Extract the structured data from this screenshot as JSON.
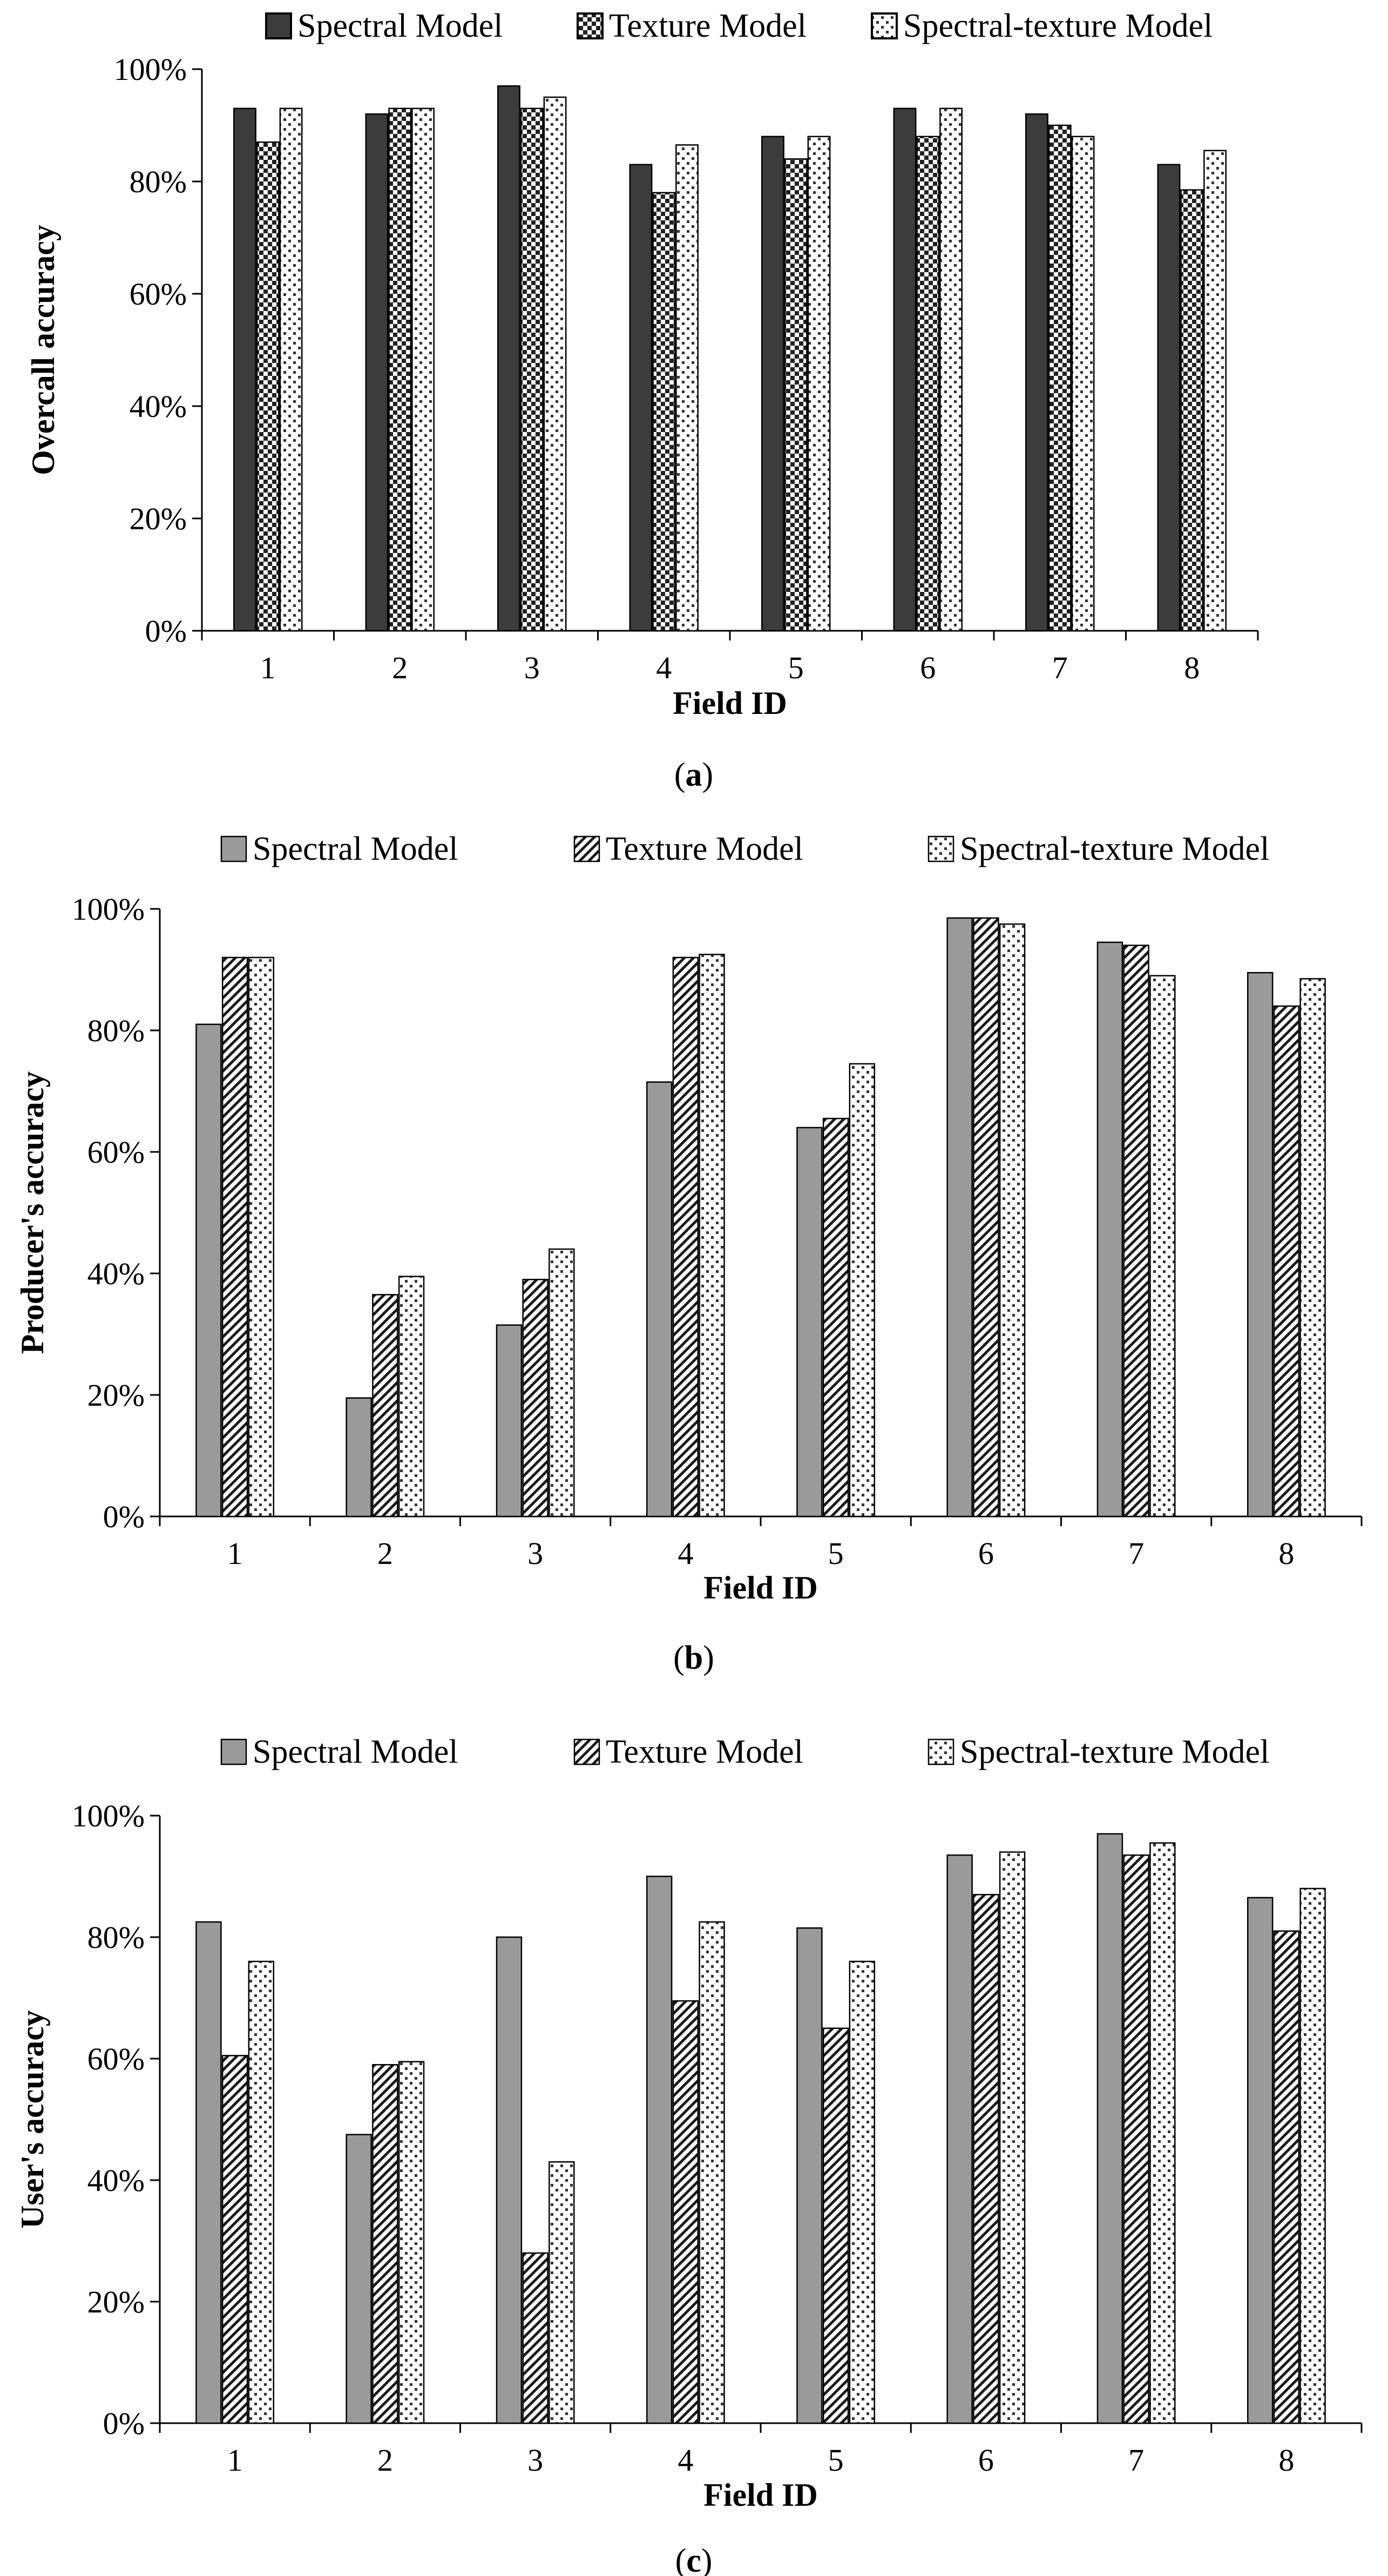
{
  "chart_data": [
    {
      "panel": "(a)",
      "panel_letter": "a",
      "type": "bar",
      "title": "",
      "xlabel": "Field ID",
      "ylabel": "Overcall accuracy",
      "ylim": [
        0,
        100
      ],
      "y_ticks": [
        "0%",
        "20%",
        "40%",
        "60%",
        "80%",
        "100%"
      ],
      "categories": [
        "1",
        "2",
        "3",
        "4",
        "5",
        "6",
        "7",
        "8"
      ],
      "legend_style": "boxed",
      "series": [
        {
          "name": "Spectral Model",
          "pattern": "solid-dark",
          "values": [
            93,
            92,
            97,
            83,
            88,
            93,
            92,
            83
          ]
        },
        {
          "name": "Texture Model",
          "pattern": "checker",
          "values": [
            87,
            93,
            93,
            78,
            84,
            88,
            90,
            78.5
          ]
        },
        {
          "name": "Spectral-texture Model",
          "pattern": "dots",
          "values": [
            93,
            93,
            95,
            86.5,
            88,
            93,
            88,
            85.5
          ]
        }
      ]
    },
    {
      "panel": "(b)",
      "panel_letter": "b",
      "type": "bar",
      "title": "",
      "xlabel": "Field ID",
      "ylabel": "Producer's  accuracy",
      "ylim": [
        0,
        100
      ],
      "y_ticks": [
        "0%",
        "20%",
        "40%",
        "60%",
        "80%",
        "100%"
      ],
      "categories": [
        "1",
        "2",
        "3",
        "4",
        "5",
        "6",
        "7",
        "8"
      ],
      "legend_style": "swatch",
      "series": [
        {
          "name": "Spectral Model",
          "pattern": "solid-grey",
          "values": [
            81,
            19.5,
            31.5,
            71.5,
            64,
            98.5,
            94.5,
            89.5
          ]
        },
        {
          "name": "Texture Model",
          "pattern": "diagonal",
          "values": [
            92,
            36.5,
            39,
            92,
            65.5,
            98.5,
            94,
            84
          ]
        },
        {
          "name": "Spectral-texture Model",
          "pattern": "dots",
          "values": [
            92,
            39.5,
            44,
            92.5,
            74.5,
            97.5,
            89,
            88.5
          ]
        }
      ]
    },
    {
      "panel": "(c)",
      "panel_letter": "c",
      "type": "bar",
      "title": "",
      "xlabel": "Field ID",
      "ylabel": "User's accuracy",
      "ylim": [
        0,
        100
      ],
      "y_ticks": [
        "0%",
        "20%",
        "40%",
        "60%",
        "80%",
        "100%"
      ],
      "categories": [
        "1",
        "2",
        "3",
        "4",
        "5",
        "6",
        "7",
        "8"
      ],
      "legend_style": "swatch",
      "series": [
        {
          "name": "Spectral Model",
          "pattern": "solid-grey",
          "values": [
            82.5,
            47.5,
            80,
            90,
            81.5,
            93.5,
            97,
            86.5
          ]
        },
        {
          "name": "Texture Model",
          "pattern": "diagonal",
          "values": [
            60.5,
            59,
            28,
            69.5,
            65,
            87,
            93.5,
            81
          ]
        },
        {
          "name": "Spectral-texture Model",
          "pattern": "dots",
          "values": [
            76,
            59.5,
            43,
            82.5,
            76,
            94,
            95.5,
            88
          ]
        }
      ]
    }
  ]
}
